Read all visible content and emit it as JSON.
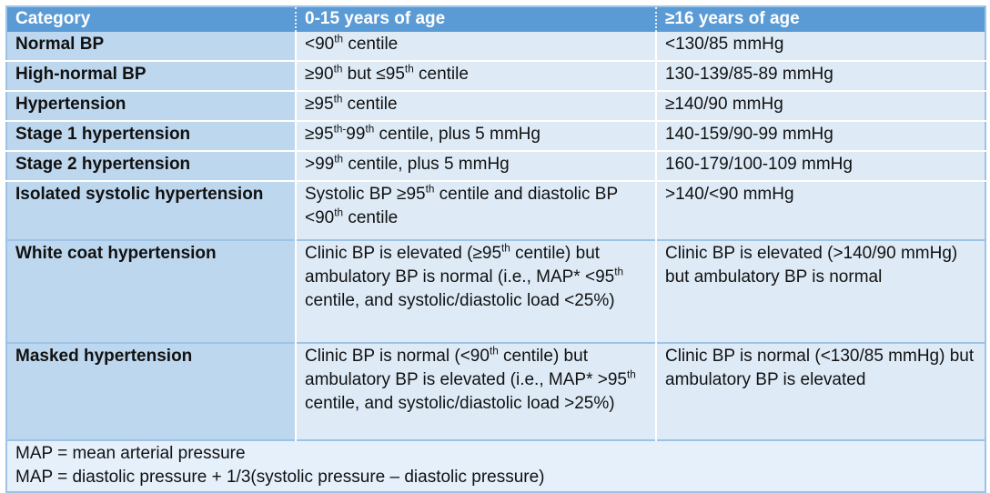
{
  "colors": {
    "header_bg": "#5B9BD5",
    "header_text": "#FFFFFF",
    "category_column_bg": "#BDD7EE",
    "value_cell_bg": "#DEEBF7",
    "footnote_bg": "#E5F0FB",
    "section_border": "#9DC3E6",
    "row_separator": "#FFFFFF",
    "body_text": "#111111"
  },
  "table": {
    "columns": [
      {
        "label": "Category"
      },
      {
        "label": "0-15 years of age"
      },
      {
        "label": "≥16 years of age"
      }
    ],
    "rows": [
      {
        "category": "Normal BP",
        "pediatric": "<90^th^ centile",
        "adult": "<130/85 mmHg"
      },
      {
        "category": "High-normal BP",
        "pediatric": "≥90^th^ but ≤95^th^ centile",
        "adult": "130-139/85-89 mmHg"
      },
      {
        "category": "Hypertension",
        "pediatric": "≥95^th^ centile",
        "adult": "≥140/90 mmHg"
      },
      {
        "category": "Stage 1 hypertension",
        "pediatric": "≥95^th-^99^th^ centile, plus 5 mmHg",
        "adult": "140-159/90-99 mmHg"
      },
      {
        "category": "Stage 2 hypertension",
        "pediatric": ">99^th^ centile, plus 5 mmHg",
        "adult": "160-179/100-109 mmHg"
      },
      {
        "category": "Isolated systolic hypertension",
        "pediatric": "Systolic BP ≥95^th^ centile and diastolic BP <90^th^ centile",
        "adult": ">140/<90 mmHg"
      },
      {
        "category": "White coat hypertension",
        "pediatric": "Clinic BP is elevated (≥95^th^ centile) but ambulatory BP is normal (i.e., MAP* <95^th^ centile, and systolic/diastolic load <25%)",
        "adult": "Clinic BP is elevated (>140/90 mmHg) but ambulatory BP is normal"
      },
      {
        "category": "Masked hypertension",
        "pediatric": "Clinic BP is normal (<90^th^ centile) but ambulatory BP is elevated (i.e., MAP* >95^th^ centile, and systolic/diastolic load >25%)",
        "adult": "Clinic BP is normal (<130/85 mmHg) but ambulatory BP is elevated"
      }
    ],
    "footnotes": [
      "MAP = mean arterial pressure",
      "MAP = diastolic pressure + 1/3(systolic pressure – diastolic pressure)"
    ]
  }
}
